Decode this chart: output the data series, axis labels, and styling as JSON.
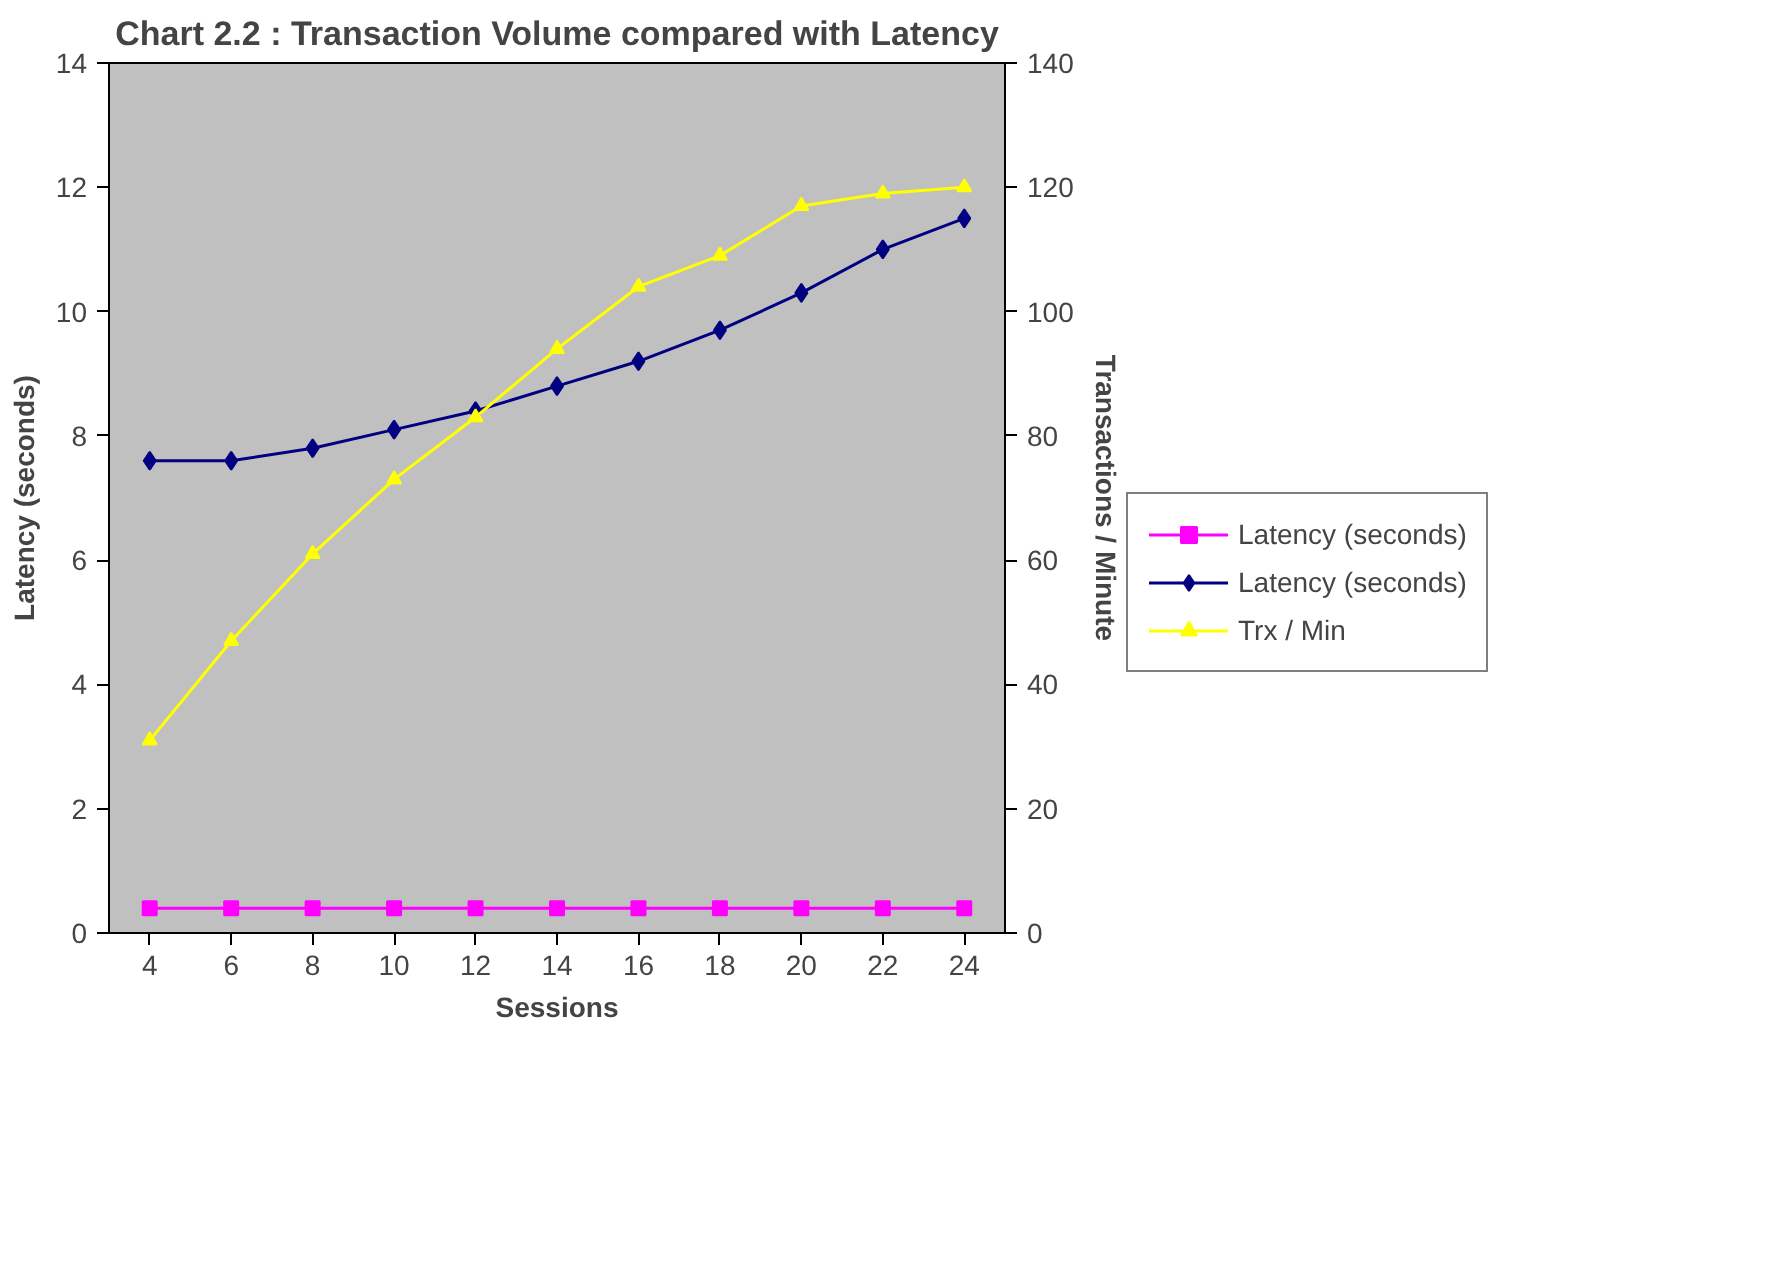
{
  "chart_data": {
    "type": "line",
    "title": "Chart 2.2 : Transaction Volume compared with Latency",
    "xlabel": "Sessions",
    "ylabel": "Latency (seconds)",
    "y2label": "Transactions / Minute",
    "categories": [
      "4",
      "6",
      "8",
      "10",
      "12",
      "14",
      "16",
      "18",
      "20",
      "22",
      "24"
    ],
    "ylim": [
      0,
      14
    ],
    "yticks": [
      0,
      2,
      4,
      6,
      8,
      10,
      12,
      14
    ],
    "y2lim": [
      0,
      140
    ],
    "y2ticks": [
      0,
      20,
      40,
      60,
      80,
      100,
      120,
      140
    ],
    "grid": false,
    "legend": "right",
    "series": [
      {
        "name": "Latency (seconds)",
        "color": "#ff00ff",
        "marker": "square",
        "values": [
          0.4,
          0.4,
          0.4,
          0.4,
          0.4,
          0.4,
          0.4,
          0.4,
          0.4,
          0.4,
          0.4
        ]
      },
      {
        "name": "Latency (seconds)",
        "color": "#000080",
        "marker": "diamond",
        "values": [
          7.6,
          7.6,
          7.8,
          8.1,
          8.4,
          8.8,
          9.2,
          9.7,
          10.3,
          11.0,
          11.5
        ]
      },
      {
        "name": "Trx / Min",
        "color": "#ffff00",
        "marker": "triangle",
        "axis": "y2",
        "values": [
          31,
          47,
          61,
          73,
          83,
          94,
          104,
          109,
          117,
          119,
          120
        ]
      }
    ]
  }
}
